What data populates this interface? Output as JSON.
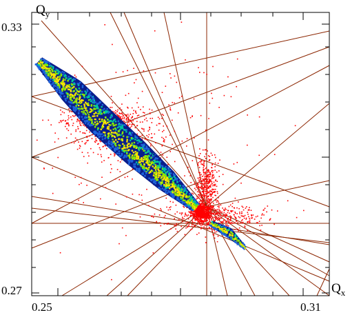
{
  "chart_data": {
    "type": "scatter",
    "title": "",
    "xlabel": "Q",
    "xlabel_sub": "x",
    "ylabel": "Q",
    "ylabel_sub": "y",
    "xlim": [
      0.25,
      0.31
    ],
    "ylim": [
      0.27,
      0.33
    ],
    "x_tick_labels": [
      "0.25",
      "0.31"
    ],
    "y_tick_labels": [
      "0.27",
      "0.33"
    ],
    "grid": false,
    "legend": "none",
    "resonance_lines": {
      "color": "#8b2500",
      "count": 26
    },
    "series": [
      {
        "kind": "tune-footprint",
        "colormap": [
          "#0a1e8c",
          "#1e64dc",
          "#00c8a0",
          "#8ce600",
          "#ffe600"
        ],
        "main_band": {
          "spine": [
            [
              0.2455,
              0.3217
            ],
            [
              0.253,
              0.315
            ],
            [
              0.26,
              0.308
            ],
            [
              0.268,
              0.301
            ],
            [
              0.275,
              0.295
            ],
            [
              0.282,
              0.289
            ]
          ],
          "width_q": [
            0.0012,
            0.0032,
            0.0036,
            0.0034,
            0.0028,
            0.0012
          ]
        },
        "secondary_band": {
          "spine": [
            [
              0.2855,
              0.2855
            ],
            [
              0.2895,
              0.2835
            ],
            [
              0.2935,
              0.28
            ]
          ],
          "width_q": [
            0.0007,
            0.0012,
            0.0004
          ]
        }
      },
      {
        "kind": "scatter-points",
        "color": "#ff0000",
        "clusters": [
          {
            "center": [
              0.283,
              0.288
            ],
            "spread": [
              0.001,
              0.001
            ],
            "weight": 0.25
          },
          {
            "center": [
              0.2845,
              0.293
            ],
            "spread": [
              0.0012,
              0.004
            ],
            "weight": 0.18
          },
          {
            "center": [
              0.26,
              0.309
            ],
            "spread": [
              0.004,
              0.0012
            ],
            "weight": 0.2
          },
          {
            "center": [
              0.264,
              0.305
            ],
            "spread": [
              0.005,
              0.002
            ],
            "weight": 0.12
          },
          {
            "center": [
              0.287,
              0.287
            ],
            "spread": [
              0.006,
              0.0015
            ],
            "weight": 0.15
          },
          {
            "center": [
              0.27,
              0.304
            ],
            "spread": [
              0.012,
              0.01
            ],
            "weight": 0.1
          }
        ]
      }
    ]
  }
}
